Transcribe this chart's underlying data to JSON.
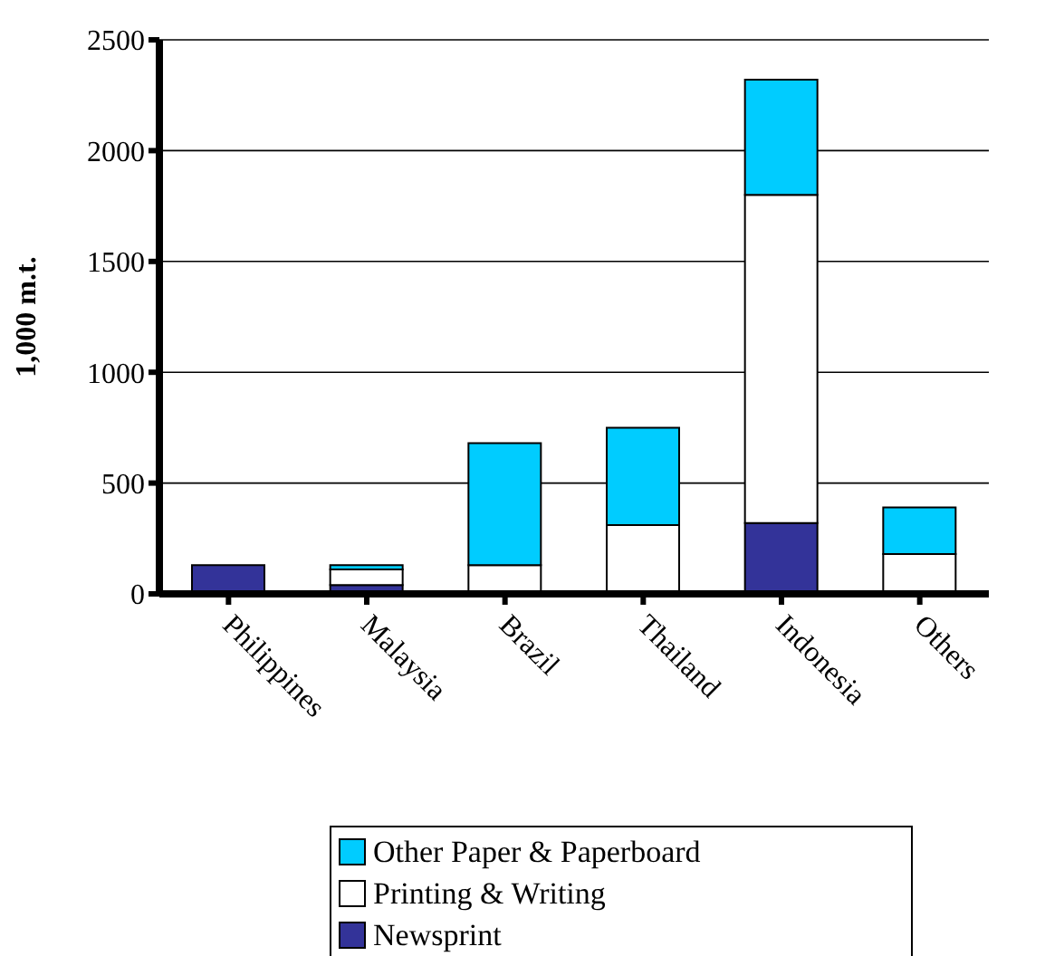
{
  "chart_data": {
    "type": "bar",
    "stacked": true,
    "ylabel": "1,000 m.t.",
    "categories": [
      "Philippines",
      "Malaysia",
      "Brazil",
      "Thailand",
      "Indonesia",
      "Others"
    ],
    "series": [
      {
        "name": "Newsprint",
        "color": "#333399",
        "values": [
          130,
          40,
          0,
          0,
          320,
          10
        ]
      },
      {
        "name": "Printing & Writing",
        "color": "#ffffff",
        "values": [
          0,
          70,
          130,
          310,
          1480,
          170
        ]
      },
      {
        "name": "Other Paper & Paperboard",
        "color": "#00ccff",
        "values": [
          0,
          20,
          550,
          440,
          520,
          210
        ]
      }
    ],
    "ylim": [
      0,
      2500
    ],
    "yticks": [
      0,
      500,
      1000,
      1500,
      2000,
      2500
    ],
    "grid": "y",
    "legend": "bottom"
  }
}
